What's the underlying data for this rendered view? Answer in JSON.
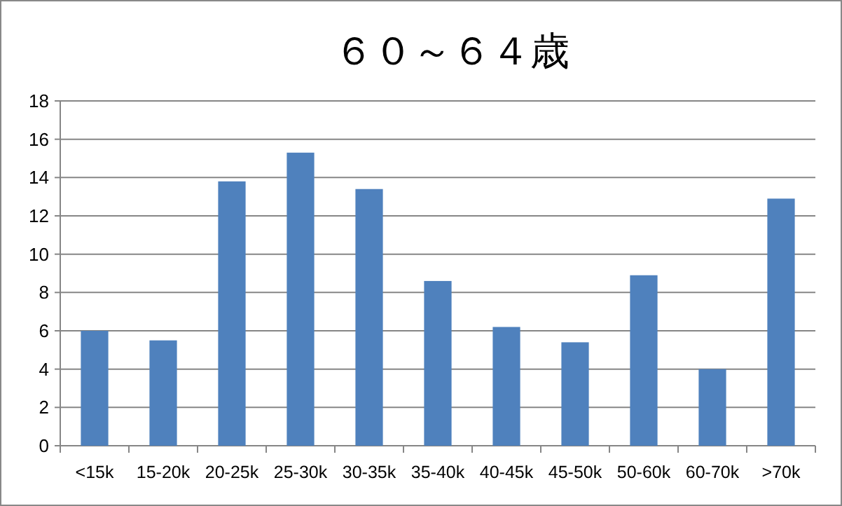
{
  "chart_data": {
    "type": "bar",
    "title": "６０～６４歳",
    "categories": [
      "<15k",
      "15-20k",
      "20-25k",
      "25-30k",
      "30-35k",
      "35-40k",
      "40-45k",
      "45-50k",
      "50-60k",
      "60-70k",
      ">70k"
    ],
    "values": [
      6.0,
      5.5,
      13.8,
      15.3,
      13.4,
      8.6,
      6.2,
      5.4,
      8.9,
      4.0,
      12.9
    ],
    "color": "#4f81bd",
    "ylim": [
      0,
      18
    ],
    "yticks": [
      0,
      2,
      4,
      6,
      8,
      10,
      12,
      14,
      16,
      18
    ],
    "grid": "y"
  }
}
